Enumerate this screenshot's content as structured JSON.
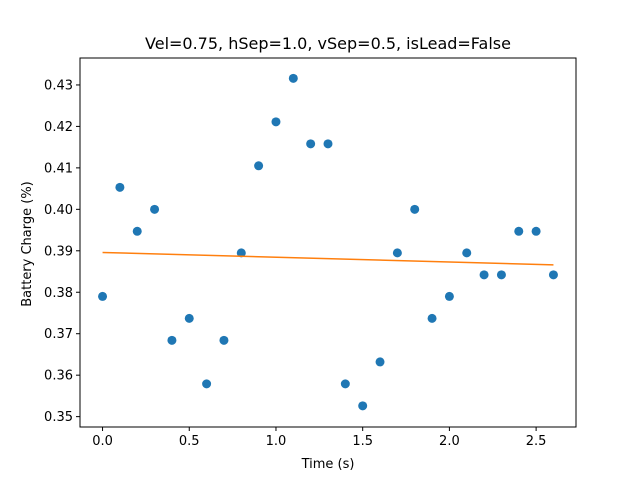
{
  "chart_data": {
    "type": "scatter",
    "title": "Vel=0.75, hSep=1.0, vSep=0.5, isLead=False",
    "xlabel": "Time (s)",
    "ylabel": "Battery Charge (%)",
    "xlim": [
      -0.13,
      2.73
    ],
    "ylim": [
      0.3475,
      0.4365
    ],
    "xticks": [
      0.0,
      0.5,
      1.0,
      1.5,
      2.0,
      2.5
    ],
    "xtick_labels": [
      "0.0",
      "0.5",
      "1.0",
      "1.5",
      "2.0",
      "2.5"
    ],
    "yticks": [
      0.35,
      0.36,
      0.37,
      0.38,
      0.39,
      0.4,
      0.41,
      0.42,
      0.43
    ],
    "ytick_labels": [
      "0.35",
      "0.36",
      "0.37",
      "0.38",
      "0.39",
      "0.40",
      "0.41",
      "0.42",
      "0.43"
    ],
    "grid": false,
    "series": [
      {
        "kind": "scatter",
        "color": "#1f77b4",
        "x": [
          0.0,
          0.1,
          0.2,
          0.3,
          0.4,
          0.5,
          0.6,
          0.7,
          0.8,
          0.9,
          1.0,
          1.1,
          1.2,
          1.3,
          1.4,
          1.5,
          1.6,
          1.7,
          1.8,
          1.9,
          2.0,
          2.1,
          2.2,
          2.3,
          2.4,
          2.5,
          2.6
        ],
        "y": [
          0.379,
          0.4053,
          0.3947,
          0.4,
          0.3684,
          0.3737,
          0.3579,
          0.3684,
          0.3895,
          0.4105,
          0.4211,
          0.4316,
          0.4158,
          0.4158,
          0.3579,
          0.3526,
          0.3632,
          0.3895,
          0.4,
          0.3737,
          0.379,
          0.3895,
          0.3842,
          0.3842,
          0.3947,
          0.3947,
          0.3842
        ]
      },
      {
        "kind": "line",
        "color": "#ff7f0e",
        "x": [
          0.0,
          2.6
        ],
        "y": [
          0.3896,
          0.3866
        ]
      }
    ]
  }
}
